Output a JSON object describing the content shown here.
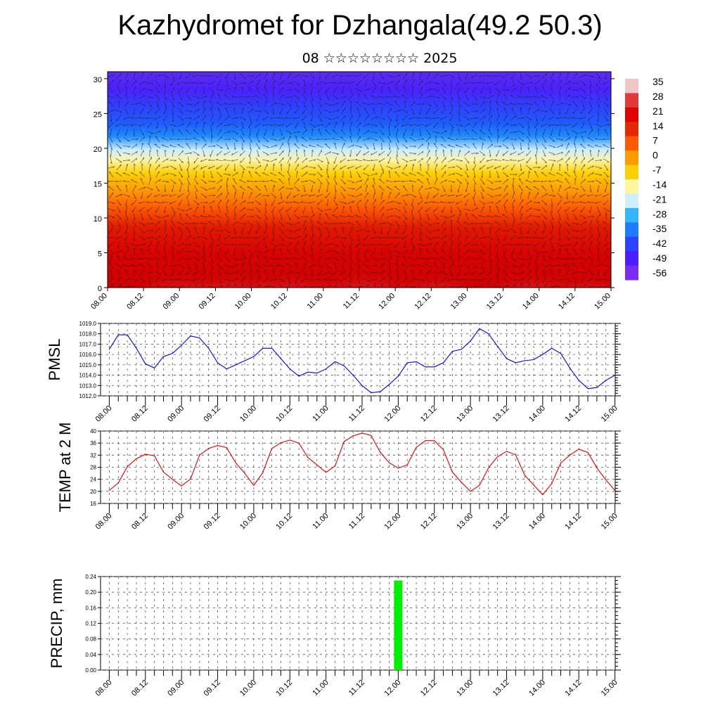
{
  "header": {
    "title": "Kazhydromet for Dzhangala(49.2 50.3)",
    "subtitle": "08 ☆☆☆☆☆☆☆☆ 2025"
  },
  "x_ticks": [
    "08.00",
    "08.12",
    "09.00",
    "09.12",
    "10.00",
    "10.12",
    "11.00",
    "11.12",
    "12.00",
    "12.12",
    "13.00",
    "13.12",
    "14.00",
    "14.12",
    "15.00"
  ],
  "colors": {
    "pmsl_line": "#0000ff",
    "temp_line": "#e00000",
    "precip_bar": "#00ee00",
    "axis": "#000000",
    "grid": "#555555"
  },
  "colorbar": {
    "labels": [
      "35",
      "28",
      "21",
      "14",
      "7",
      "0",
      "-7",
      "-14",
      "-21",
      "-28",
      "-35",
      "-42",
      "-49",
      "-56"
    ],
    "stops": [
      "#f2c6c6",
      "#e03a3a",
      "#e00000",
      "#e62800",
      "#ff5a00",
      "#ff9a00",
      "#ffd000",
      "#fff6a0",
      "#cfeffc",
      "#33b5ff",
      "#1e7bff",
      "#2b44ff",
      "#4a1fff",
      "#7a2cf0"
    ]
  },
  "chart_data": [
    {
      "type": "heatmap",
      "title": "",
      "xlabel": "",
      "ylabel": "",
      "x": [
        "08.00",
        "08.12",
        "09.00",
        "09.12",
        "10.00",
        "10.12",
        "11.00",
        "11.12",
        "12.00",
        "12.12",
        "13.00",
        "13.12",
        "14.00",
        "14.12",
        "15.00"
      ],
      "ylim": [
        0,
        31
      ],
      "yticks": [
        "0",
        "5",
        "10",
        "15",
        "20",
        "25",
        "30"
      ],
      "overlay": "wind vectors",
      "colorbar_range": [
        -56,
        35
      ]
    },
    {
      "type": "line",
      "ylabel": "PMSL",
      "x": [
        "08.00",
        "08.03",
        "08.06",
        "08.09",
        "08.12",
        "08.15",
        "08.18",
        "08.21",
        "09.00",
        "09.03",
        "09.06",
        "09.09",
        "09.12",
        "09.15",
        "09.18",
        "09.21",
        "10.00",
        "10.03",
        "10.06",
        "10.09",
        "10.12",
        "10.15",
        "10.18",
        "10.21",
        "11.00",
        "11.03",
        "11.06",
        "11.09",
        "11.12",
        "11.15",
        "11.18",
        "11.21",
        "12.00",
        "12.03",
        "12.06",
        "12.09",
        "12.12",
        "12.15",
        "12.18",
        "12.21",
        "13.00",
        "13.03",
        "13.06",
        "13.09",
        "13.12",
        "13.15",
        "13.18",
        "13.21",
        "14.00",
        "14.03",
        "14.06",
        "14.09",
        "14.12",
        "14.15",
        "14.18",
        "14.21",
        "15.00"
      ],
      "values": [
        1016.5,
        1017.9,
        1017.9,
        1016.6,
        1015.1,
        1014.7,
        1015.8,
        1016.1,
        1016.9,
        1017.8,
        1017.6,
        1016.6,
        1015.2,
        1014.6,
        1015.0,
        1015.4,
        1015.8,
        1016.6,
        1016.6,
        1015.6,
        1014.6,
        1013.9,
        1014.3,
        1014.2,
        1014.6,
        1015.3,
        1014.9,
        1014.0,
        1013.0,
        1012.3,
        1012.4,
        1013.1,
        1013.9,
        1015.2,
        1015.3,
        1014.8,
        1014.8,
        1015.2,
        1016.3,
        1016.5,
        1017.3,
        1018.5,
        1018.0,
        1016.8,
        1015.6,
        1015.2,
        1015.4,
        1015.5,
        1016.0,
        1016.6,
        1016.1,
        1014.7,
        1013.5,
        1012.7,
        1012.8,
        1013.5,
        1014.0
      ],
      "ylim": [
        1012.0,
        1019.0
      ],
      "yticks": [
        "1012.0",
        "1013.0",
        "1014.0",
        "1015.0",
        "1016.0",
        "1017.0",
        "1018.0",
        "1019.0"
      ]
    },
    {
      "type": "line",
      "ylabel": "TEMP at 2 M",
      "values": [
        20.3,
        22.8,
        28.2,
        30.8,
        32.3,
        31.8,
        26.4,
        24.0,
        21.8,
        24.1,
        32.0,
        34.2,
        35.2,
        34.5,
        29.5,
        26.0,
        22.0,
        26.2,
        34.2,
        36.1,
        37.0,
        36.0,
        31.2,
        28.8,
        26.3,
        28.4,
        36.5,
        38.4,
        39.3,
        38.5,
        33.0,
        29.5,
        27.7,
        28.8,
        34.6,
        36.8,
        36.8,
        33.8,
        26.4,
        23.0,
        20.0,
        22.0,
        27.8,
        31.5,
        33.3,
        32.1,
        25.4,
        22.1,
        18.9,
        22.6,
        29.4,
        32.0,
        34.0,
        32.9,
        27.8,
        23.8,
        20.3
      ],
      "ylim": [
        16,
        40
      ],
      "yticks": [
        "16",
        "20",
        "24",
        "28",
        "32",
        "36",
        "40"
      ]
    },
    {
      "type": "bar",
      "ylabel": "PRECIP, mm",
      "categories": [
        "12.00"
      ],
      "values": [
        0.23
      ],
      "ylim": [
        0.0,
        0.24
      ],
      "yticks": [
        "0.00",
        "0.04",
        "0.08",
        "0.12",
        "0.16",
        "0.20",
        "0.24"
      ]
    }
  ]
}
